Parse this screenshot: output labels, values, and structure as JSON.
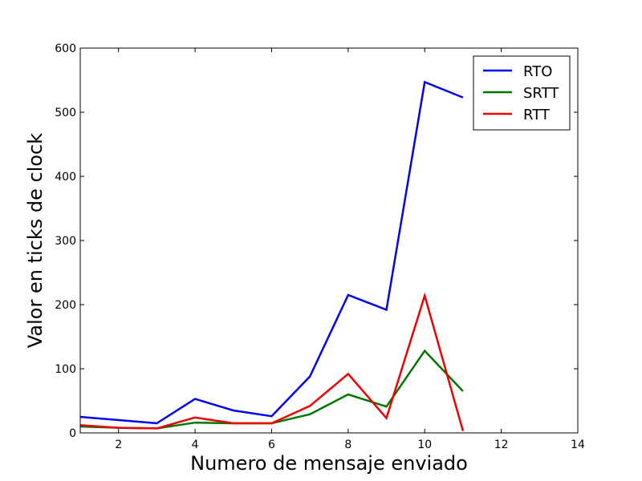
{
  "chart_data": {
    "type": "line",
    "title": "",
    "xlabel": "Numero de mensaje enviado",
    "ylabel": "Valor en ticks de clock",
    "xlim": [
      1,
      14
    ],
    "ylim": [
      0,
      600
    ],
    "xticks": [
      2,
      4,
      6,
      8,
      10,
      12,
      14
    ],
    "yticks": [
      0,
      100,
      200,
      300,
      400,
      500,
      600
    ],
    "grid": false,
    "legend_position": "top-right",
    "x": [
      1,
      2,
      3,
      4,
      5,
      6,
      7,
      8,
      9,
      10,
      11
    ],
    "series": [
      {
        "name": "RTO",
        "color": "#0000ee",
        "values": [
          25,
          20,
          15,
          53,
          35,
          26,
          88,
          215,
          192,
          547,
          523
        ]
      },
      {
        "name": "SRTT",
        "color": "#007700",
        "values": [
          10,
          8,
          7,
          16,
          15,
          15,
          29,
          60,
          41,
          128,
          65
        ]
      },
      {
        "name": "RTT",
        "color": "#ee0000",
        "values": [
          12,
          8,
          7,
          24,
          15,
          15,
          42,
          92,
          23,
          214,
          3
        ]
      }
    ]
  }
}
